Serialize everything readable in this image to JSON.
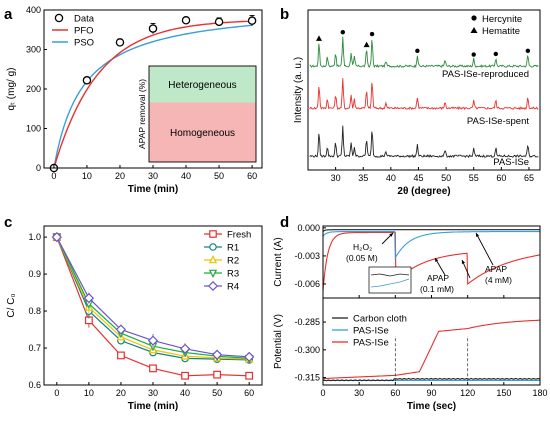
{
  "panel_labels": [
    "a",
    "b",
    "c",
    "d"
  ],
  "colors": {
    "red": "#e8312f",
    "blue": "#3a9fd8",
    "black": "#222222",
    "green": "#2e8b3e",
    "yellow": "#e8c400",
    "green_marker": "#1fae3f",
    "purple": "#6c55c8",
    "teal": "#16808a"
  },
  "chart_data": [
    {
      "id": "a",
      "type": "scatter",
      "xlabel": "Time (min)",
      "ylabel": "qₜ (mg/ g)",
      "xlim": [
        -3,
        63
      ],
      "ylim": [
        0,
        400
      ],
      "xticks": [
        0,
        10,
        20,
        30,
        40,
        50,
        60
      ],
      "yticks": [
        0,
        100,
        200,
        300,
        400
      ],
      "legend_position": "top-left",
      "series": [
        {
          "name": "Data",
          "kind": "points",
          "x": [
            0,
            10,
            20,
            30,
            40,
            50,
            60
          ],
          "y": [
            0,
            222,
            318,
            353,
            374,
            370,
            373
          ],
          "err": [
            0,
            5,
            8,
            13,
            7,
            10,
            13
          ]
        },
        {
          "name": "PFO",
          "kind": "line",
          "color": "#e8312f",
          "k": 0.075,
          "qe": 376
        },
        {
          "name": "PSO",
          "kind": "line",
          "color": "#3a9fd8",
          "k": 0.00027,
          "qe": 415
        }
      ],
      "inset": {
        "ylabel": "APAP removal (%)",
        "top_label": "Heterogeneous",
        "bottom_label": "Homogeneous",
        "top_fraction": 0.62
      }
    },
    {
      "id": "b",
      "type": "line",
      "xlabel": "2θ (degree)",
      "ylabel": "Intensity (a. u.)",
      "xlim": [
        25,
        67
      ],
      "xticks": [
        30,
        35,
        40,
        45,
        50,
        55,
        60,
        65
      ],
      "legend": [
        {
          "name": "Hercynite",
          "symbol": "circle"
        },
        {
          "name": "Hematite",
          "symbol": "triangle"
        }
      ],
      "series": [
        {
          "name": "PAS-ISe-reproduced",
          "color": "#2e8b3e",
          "offset": 2.0
        },
        {
          "name": "PAS-ISe-spent",
          "color": "#e8312f",
          "offset": 1.0
        },
        {
          "name": "PAS-ISe",
          "color": "#222222",
          "offset": 0.0
        }
      ],
      "peaks": [
        {
          "x": 27.0,
          "h": 0.38,
          "m": "t"
        },
        {
          "x": 28.5,
          "h": 0.15
        },
        {
          "x": 30.0,
          "h": 0.22
        },
        {
          "x": 31.3,
          "h": 0.48,
          "m": "c"
        },
        {
          "x": 32.8,
          "h": 0.22
        },
        {
          "x": 33.4,
          "h": 0.15
        },
        {
          "x": 35.6,
          "h": 0.28,
          "m": "t"
        },
        {
          "x": 36.6,
          "h": 0.45,
          "m": "c"
        },
        {
          "x": 39.1,
          "h": 0.08
        },
        {
          "x": 44.8,
          "h": 0.18,
          "m": "c"
        },
        {
          "x": 49.8,
          "h": 0.1
        },
        {
          "x": 55.0,
          "h": 0.12,
          "m": "c"
        },
        {
          "x": 59.0,
          "h": 0.13,
          "m": "c"
        },
        {
          "x": 64.8,
          "h": 0.18,
          "m": "c"
        }
      ]
    },
    {
      "id": "c",
      "type": "line",
      "xlabel": "Time (min)",
      "ylabel": "C/ C₀",
      "xlim": [
        -4,
        64
      ],
      "ylim": [
        0.6,
        1.03
      ],
      "xticks": [
        0,
        10,
        20,
        30,
        40,
        50,
        60
      ],
      "yticks": [
        0.6,
        0.7,
        0.8,
        0.9,
        1.0
      ],
      "legend_position": "top-right",
      "x": [
        0,
        10,
        20,
        30,
        40,
        50,
        60
      ],
      "series": [
        {
          "name": "Fresh",
          "color": "#e8312f",
          "marker": "square",
          "values": [
            1.0,
            0.775,
            0.68,
            0.645,
            0.625,
            0.628,
            0.625
          ],
          "err": [
            0,
            0.02,
            0.008,
            0.006,
            0.01,
            0.005,
            0.005
          ]
        },
        {
          "name": "R1",
          "color": "#16808a",
          "marker": "circle",
          "values": [
            1.0,
            0.8,
            0.72,
            0.688,
            0.672,
            0.67,
            0.668
          ],
          "err": [
            0,
            0.02,
            0.01,
            0.01,
            0.01,
            0.008,
            0.008
          ]
        },
        {
          "name": "R2",
          "color": "#e8c400",
          "marker": "triangle-up",
          "values": [
            1.0,
            0.81,
            0.73,
            0.695,
            0.678,
            0.673,
            0.67
          ],
          "err": [
            0,
            0.015,
            0.01,
            0.01,
            0.01,
            0.008,
            0.008
          ]
        },
        {
          "name": "R3",
          "color": "#1fae3f",
          "marker": "triangle-down",
          "values": [
            1.0,
            0.82,
            0.74,
            0.705,
            0.688,
            0.678,
            0.672
          ],
          "err": [
            0,
            0.015,
            0.01,
            0.012,
            0.012,
            0.01,
            0.008
          ]
        },
        {
          "name": "R4",
          "color": "#6c55c8",
          "marker": "diamond",
          "values": [
            1.0,
            0.835,
            0.75,
            0.72,
            0.698,
            0.682,
            0.676
          ],
          "err": [
            0,
            0.015,
            0.01,
            0.018,
            0.015,
            0.01,
            0.008
          ]
        }
      ]
    },
    {
      "id": "d",
      "type": "line",
      "xlabel": "Time (sec)",
      "xlim": [
        0,
        180
      ],
      "xticks": [
        0,
        30,
        60,
        90,
        120,
        150,
        180
      ],
      "top": {
        "ylabel": "Current (A)",
        "ylim": [
          -0.0075,
          0.0002
        ],
        "yticks": [
          0.0,
          -0.003,
          -0.006
        ],
        "ytick_labels": [
          "0.000",
          "-0.003",
          "-0.006"
        ],
        "annotations": [
          "H₂O₂",
          "(0.05 M)",
          "APAP",
          "(0.1 mM)",
          "APAP",
          "(4 mM)"
        ]
      },
      "bottom": {
        "ylabel": "Potential (V)",
        "ylim": [
          -0.319,
          -0.272
        ],
        "yticks": [
          -0.285,
          -0.3,
          -0.315
        ],
        "ytick_labels": [
          "-0.285",
          "-0.300",
          "-0.315"
        ],
        "event_times": [
          60,
          120
        ]
      },
      "series": [
        {
          "name": "Carbon cloth",
          "color": "#222222"
        },
        {
          "name": "PAS-ISe",
          "color": "#3a9fd8"
        },
        {
          "name": "PAS-ISe",
          "color": "#e8312f"
        }
      ]
    }
  ]
}
